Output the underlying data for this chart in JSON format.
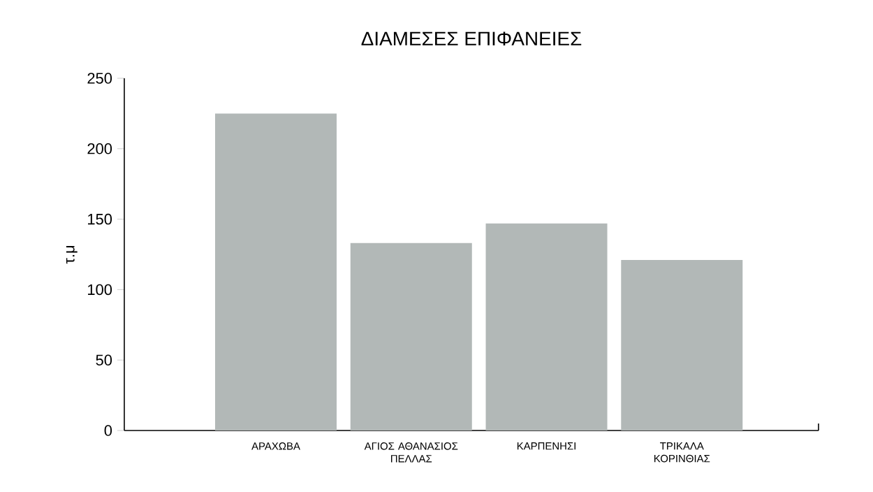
{
  "chart_data": {
    "type": "bar",
    "title": "ΔΙΑΜΕΣΕΣ ΕΠΙΦΑΝΕΙΕΣ",
    "ylabel": "τ.μ",
    "categories": [
      "ΑΡΑΧΩΒΑ",
      "ΑΓΙΟΣ ΑΘΑΝΑΣΙΟΣ ΠΕΛΛΑΣ",
      "ΚΑΡΠΕΝΗΣΙ",
      "ΤΡΙΚΑΛΑ ΚΟΡΙΝΘΙΑΣ"
    ],
    "values": [
      225,
      133,
      147,
      121
    ],
    "color": "#b2b8b7",
    "ylim": [
      0,
      250
    ],
    "yticks": [
      0,
      50,
      100,
      150,
      200,
      250
    ],
    "grid": false
  }
}
